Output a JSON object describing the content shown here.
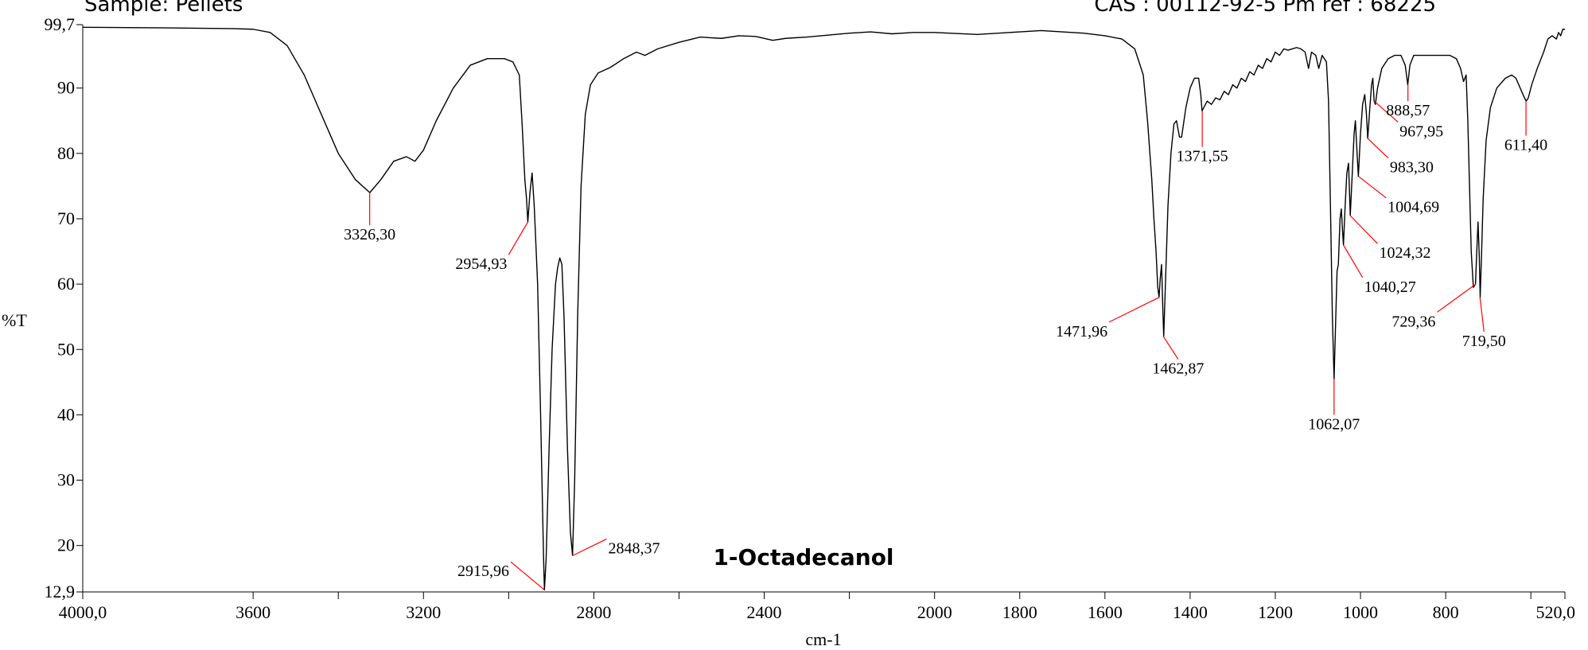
{
  "header": {
    "sample": "Sample: Pellets",
    "reference": "CAS : 00112-92-5  Pm ref : 68225"
  },
  "chart_data": {
    "type": "line",
    "title": "1-Octadecanol",
    "xlabel": "cm-1",
    "ylabel": "%T",
    "xlim": [
      4000,
      520
    ],
    "ylim": [
      12.9,
      99.7
    ],
    "x_reversed": true,
    "grid": false,
    "legend": "none",
    "x_ticks": [
      {
        "value": 4000,
        "label": "4000,0"
      },
      {
        "value": 3600,
        "label": "3600"
      },
      {
        "value": 3200,
        "label": "3200"
      },
      {
        "value": 2800,
        "label": "2800"
      },
      {
        "value": 2400,
        "label": "2400"
      },
      {
        "value": 2000,
        "label": "2000"
      },
      {
        "value": 1800,
        "label": "1800"
      },
      {
        "value": 1600,
        "label": "1600"
      },
      {
        "value": 1400,
        "label": "1400"
      },
      {
        "value": 1200,
        "label": "1200"
      },
      {
        "value": 1000,
        "label": "1000"
      },
      {
        "value": 800,
        "label": "800"
      },
      {
        "value": 520,
        "label": "520,0"
      }
    ],
    "x_minor_ticks": [
      3400,
      3000,
      2600,
      2200,
      600
    ],
    "y_ticks": [
      {
        "value": 99.7,
        "label": "99,7"
      },
      {
        "value": 90,
        "label": "90"
      },
      {
        "value": 80,
        "label": "80"
      },
      {
        "value": 70,
        "label": "70"
      },
      {
        "value": 60,
        "label": "60"
      },
      {
        "value": 50,
        "label": "50"
      },
      {
        "value": 40,
        "label": "40"
      },
      {
        "value": 30,
        "label": "30"
      },
      {
        "value": 20,
        "label": "20"
      },
      {
        "value": 12.9,
        "label": "12,9"
      }
    ],
    "series": [
      {
        "color": "#000000",
        "points": [
          [
            4000,
            99.3
          ],
          [
            3800,
            99.2
          ],
          [
            3650,
            99.1
          ],
          [
            3600,
            99.0
          ],
          [
            3560,
            98.5
          ],
          [
            3520,
            96.5
          ],
          [
            3480,
            92.0
          ],
          [
            3440,
            86.0
          ],
          [
            3400,
            80.0
          ],
          [
            3360,
            76.0
          ],
          [
            3326,
            74.0
          ],
          [
            3300,
            76.0
          ],
          [
            3270,
            78.8
          ],
          [
            3240,
            79.5
          ],
          [
            3220,
            78.8
          ],
          [
            3200,
            80.5
          ],
          [
            3170,
            85.0
          ],
          [
            3130,
            90.0
          ],
          [
            3090,
            93.5
          ],
          [
            3050,
            94.5
          ],
          [
            3010,
            94.5
          ],
          [
            2990,
            94.0
          ],
          [
            2975,
            92.0
          ],
          [
            2968,
            84.0
          ],
          [
            2962,
            76.0
          ],
          [
            2958,
            73.0
          ],
          [
            2955,
            69.5
          ],
          [
            2950,
            74.0
          ],
          [
            2945,
            77.0
          ],
          [
            2940,
            72.0
          ],
          [
            2932,
            60.0
          ],
          [
            2925,
            40.0
          ],
          [
            2918,
            18.0
          ],
          [
            2916,
            13.2
          ],
          [
            2912,
            18.0
          ],
          [
            2905,
            35.0
          ],
          [
            2898,
            50.0
          ],
          [
            2890,
            60.0
          ],
          [
            2885,
            62.5
          ],
          [
            2880,
            64.0
          ],
          [
            2875,
            63.0
          ],
          [
            2870,
            55.0
          ],
          [
            2862,
            35.0
          ],
          [
            2855,
            22.0
          ],
          [
            2850,
            18.5
          ],
          [
            2845,
            30.0
          ],
          [
            2838,
            55.0
          ],
          [
            2830,
            75.0
          ],
          [
            2820,
            86.0
          ],
          [
            2808,
            90.5
          ],
          [
            2790,
            92.3
          ],
          [
            2760,
            93.2
          ],
          [
            2730,
            94.5
          ],
          [
            2700,
            95.5
          ],
          [
            2680,
            95.0
          ],
          [
            2650,
            96.0
          ],
          [
            2600,
            97.0
          ],
          [
            2550,
            97.8
          ],
          [
            2500,
            97.6
          ],
          [
            2460,
            98.0
          ],
          [
            2420,
            97.9
          ],
          [
            2380,
            97.3
          ],
          [
            2350,
            97.6
          ],
          [
            2300,
            97.8
          ],
          [
            2200,
            98.4
          ],
          [
            2150,
            98.6
          ],
          [
            2100,
            98.3
          ],
          [
            2050,
            98.5
          ],
          [
            2000,
            98.5
          ],
          [
            1900,
            98.2
          ],
          [
            1800,
            98.6
          ],
          [
            1750,
            98.8
          ],
          [
            1700,
            98.6
          ],
          [
            1650,
            98.4
          ],
          [
            1600,
            98.0
          ],
          [
            1560,
            97.5
          ],
          [
            1530,
            96.0
          ],
          [
            1510,
            92.0
          ],
          [
            1500,
            85.0
          ],
          [
            1490,
            76.0
          ],
          [
            1485,
            70.0
          ],
          [
            1480,
            65.0
          ],
          [
            1476,
            59.5
          ],
          [
            1473,
            58.0
          ],
          [
            1470,
            61.0
          ],
          [
            1467,
            63.0
          ],
          [
            1464,
            56.0
          ],
          [
            1462,
            52.0
          ],
          [
            1458,
            60.0
          ],
          [
            1452,
            72.0
          ],
          [
            1445,
            80.0
          ],
          [
            1438,
            84.5
          ],
          [
            1432,
            85.0
          ],
          [
            1425,
            82.5
          ],
          [
            1420,
            82.5
          ],
          [
            1410,
            87.0
          ],
          [
            1400,
            90.0
          ],
          [
            1390,
            91.5
          ],
          [
            1380,
            91.5
          ],
          [
            1375,
            89.0
          ],
          [
            1372,
            86.5
          ],
          [
            1368,
            87.0
          ],
          [
            1360,
            88.0
          ],
          [
            1350,
            87.5
          ],
          [
            1340,
            88.5
          ],
          [
            1330,
            88.2
          ],
          [
            1320,
            89.5
          ],
          [
            1310,
            89.0
          ],
          [
            1300,
            90.5
          ],
          [
            1290,
            90.0
          ],
          [
            1280,
            91.5
          ],
          [
            1270,
            91.0
          ],
          [
            1260,
            92.5
          ],
          [
            1250,
            92.0
          ],
          [
            1240,
            93.5
          ],
          [
            1230,
            93.0
          ],
          [
            1220,
            94.5
          ],
          [
            1210,
            94.0
          ],
          [
            1200,
            95.5
          ],
          [
            1190,
            95.0
          ],
          [
            1180,
            96.0
          ],
          [
            1170,
            95.8
          ],
          [
            1150,
            96.2
          ],
          [
            1140,
            96.0
          ],
          [
            1130,
            95.5
          ],
          [
            1122,
            93.0
          ],
          [
            1115,
            95.5
          ],
          [
            1105,
            95.0
          ],
          [
            1098,
            93.0
          ],
          [
            1090,
            95.0
          ],
          [
            1080,
            94.0
          ],
          [
            1075,
            88.0
          ],
          [
            1070,
            70.0
          ],
          [
            1066,
            55.0
          ],
          [
            1062,
            45.5
          ],
          [
            1058,
            55.0
          ],
          [
            1055,
            62.0
          ],
          [
            1052,
            63.0
          ],
          [
            1048,
            70.0
          ],
          [
            1045,
            71.5
          ],
          [
            1042,
            68.0
          ],
          [
            1040,
            66.0
          ],
          [
            1036,
            72.0
          ],
          [
            1032,
            77.0
          ],
          [
            1028,
            78.5
          ],
          [
            1024,
            70.5
          ],
          [
            1020,
            76.0
          ],
          [
            1015,
            83.0
          ],
          [
            1012,
            85.0
          ],
          [
            1008,
            80.0
          ],
          [
            1005,
            76.5
          ],
          [
            1000,
            83.0
          ],
          [
            995,
            87.5
          ],
          [
            990,
            89.0
          ],
          [
            986,
            86.0
          ],
          [
            983,
            82.3
          ],
          [
            978,
            87.0
          ],
          [
            974,
            90.5
          ],
          [
            971,
            91.5
          ],
          [
            968,
            88.0
          ],
          [
            965,
            87.5
          ],
          [
            960,
            90.0
          ],
          [
            950,
            93.0
          ],
          [
            935,
            94.5
          ],
          [
            920,
            95.0
          ],
          [
            905,
            95.0
          ],
          [
            895,
            93.5
          ],
          [
            889,
            90.5
          ],
          [
            884,
            93.5
          ],
          [
            875,
            95.0
          ],
          [
            850,
            95.0
          ],
          [
            820,
            95.0
          ],
          [
            790,
            95.0
          ],
          [
            775,
            94.5
          ],
          [
            765,
            93.0
          ],
          [
            758,
            91.0
          ],
          [
            752,
            92.0
          ],
          [
            748,
            85.0
          ],
          [
            744,
            75.0
          ],
          [
            740,
            65.0
          ],
          [
            735,
            59.5
          ],
          [
            730,
            60.0
          ],
          [
            727,
            65.0
          ],
          [
            724,
            69.5
          ],
          [
            721,
            64.0
          ],
          [
            719,
            58.0
          ],
          [
            716,
            64.0
          ],
          [
            712,
            73.0
          ],
          [
            705,
            82.0
          ],
          [
            695,
            87.0
          ],
          [
            680,
            90.0
          ],
          [
            660,
            91.5
          ],
          [
            645,
            92.0
          ],
          [
            635,
            91.5
          ],
          [
            625,
            90.0
          ],
          [
            615,
            88.5
          ],
          [
            611,
            88.0
          ],
          [
            606,
            88.5
          ],
          [
            598,
            90.5
          ],
          [
            585,
            93.0
          ],
          [
            570,
            95.5
          ],
          [
            560,
            97.5
          ],
          [
            550,
            98.0
          ],
          [
            540,
            97.5
          ],
          [
            535,
            98.5
          ],
          [
            530,
            98.0
          ],
          [
            525,
            99.0
          ],
          [
            520,
            99.0
          ]
        ]
      }
    ],
    "annotations": [
      {
        "label": "3326,30",
        "x": 3326.3,
        "y": 74.0,
        "text_x": 3326.3,
        "text_y": 69.0
      },
      {
        "label": "2954,93",
        "x": 2954.93,
        "y": 69.5,
        "text_x": 3000,
        "text_y": 64.5
      },
      {
        "label": "2915,96",
        "x": 2915.96,
        "y": 13.2,
        "text_x": 2995,
        "text_y": 17.5
      },
      {
        "label": "2848,37",
        "x": 2848.37,
        "y": 18.5,
        "text_x": 2770,
        "text_y": 21.0
      },
      {
        "label": "1471,96",
        "x": 1471.96,
        "y": 58.0,
        "text_x": 1590,
        "text_y": 54.2
      },
      {
        "label": "1462,87",
        "x": 1462.87,
        "y": 52.0,
        "text_x": 1428,
        "text_y": 48.5
      },
      {
        "label": "1371,55",
        "x": 1371.55,
        "y": 86.5,
        "text_x": 1371.55,
        "text_y": 81.0
      },
      {
        "label": "1062,07",
        "x": 1062.07,
        "y": 45.5,
        "text_x": 1062.07,
        "text_y": 40.0
      },
      {
        "label": "1040,27",
        "x": 1040.27,
        "y": 66.0,
        "text_x": 995,
        "text_y": 61.0
      },
      {
        "label": "1024,32",
        "x": 1024.32,
        "y": 70.5,
        "text_x": 960,
        "text_y": 66.2
      },
      {
        "label": "1004,69",
        "x": 1004.69,
        "y": 76.5,
        "text_x": 940,
        "text_y": 73.2
      },
      {
        "label": "983,30",
        "x": 983.3,
        "y": 82.3,
        "text_x": 935,
        "text_y": 79.3
      },
      {
        "label": "967,95",
        "x": 967.95,
        "y": 88.0,
        "text_x": 912,
        "text_y": 84.8
      },
      {
        "label": "888,57",
        "x": 888.57,
        "y": 90.5,
        "text_x": 888.57,
        "text_y": 88.0
      },
      {
        "label": "729,36",
        "x": 729.36,
        "y": 60.0,
        "text_x": 820,
        "text_y": 55.7
      },
      {
        "label": "719,50",
        "x": 719.5,
        "y": 58.0,
        "text_x": 710,
        "text_y": 52.7
      },
      {
        "label": "611,40",
        "x": 611.4,
        "y": 88.0,
        "text_x": 611.4,
        "text_y": 82.7
      }
    ]
  }
}
